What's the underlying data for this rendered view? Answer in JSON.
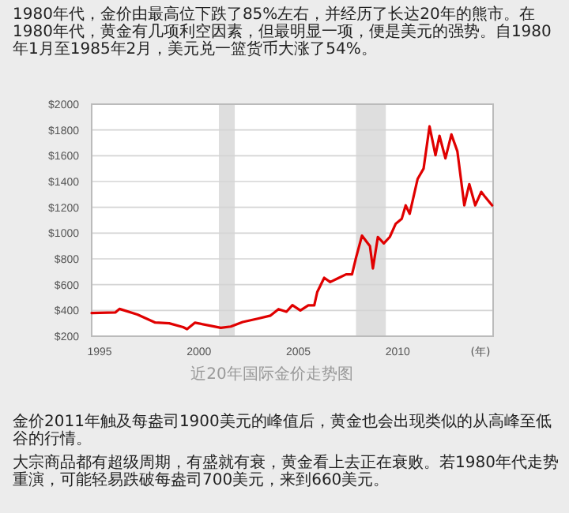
{
  "chart_data": {
    "type": "line",
    "xlabel": "(年)",
    "annotations": [
      "1980年代，金价由最高位下跌了85%左右，并经历了长达20年的熊市。在1980年代，黄金有几项利空因素，但最明显一项，便是美元的强势。自1980年1月至1985年2月，美元兑一篮货币大涨了54%。",
      "近20年国际金价走势图",
      "金价2011年触及每盎司1900美元的峰值后，黄金也会出现类似的从高峰至低谷的行情。",
      "大宗商品都有超级周期，有盛就有衰，黄金看上去正在衰败。若1980年代走势重演，可能轻易跌破每盎司700美元，来到660美元。"
    ],
    "xlim": [
      1994.6,
      2014.8
    ],
    "xticks": [
      1995,
      2000,
      2005,
      2010
    ],
    "ylim": [
      200,
      2000
    ],
    "yticks": [
      {
        "value": 200,
        "label": "$200"
      },
      {
        "value": 400,
        "label": "$400"
      },
      {
        "value": 600,
        "label": "$600"
      },
      {
        "value": 800,
        "label": "$800"
      },
      {
        "value": 1000,
        "label": "$1000"
      },
      {
        "value": 1200,
        "label": "$1200"
      },
      {
        "value": 1400,
        "label": "$1400"
      },
      {
        "value": 1600,
        "label": "$1600"
      },
      {
        "value": 1800,
        "label": "$1800"
      },
      {
        "value": 2000,
        "label": "$2000"
      }
    ],
    "grid": "y",
    "bands": [
      {
        "axis": "x",
        "from": 2001.0,
        "to": 2001.8,
        "color": "#dedede"
      },
      {
        "axis": "x",
        "from": 2007.9,
        "to": 2009.4,
        "color": "#dedede"
      }
    ],
    "series": [
      {
        "color": "#e00000",
        "x": [
          1994.6,
          1995.8,
          1996.0,
          1996.9,
          1997.8,
          1998.5,
          1999.2,
          1999.4,
          1999.8,
          2000.6,
          2001.1,
          2001.6,
          2002.2,
          2003.0,
          2003.6,
          2004.0,
          2004.4,
          2004.7,
          2005.1,
          2005.5,
          2005.8,
          2005.95,
          2006.3,
          2006.6,
          2007.0,
          2007.4,
          2007.7,
          2007.9,
          2008.2,
          2008.5,
          2008.6,
          2008.75,
          2009.0,
          2009.3,
          2009.6,
          2009.9,
          2010.2,
          2010.4,
          2010.6,
          2011.0,
          2011.3,
          2011.6,
          2011.9,
          2012.1,
          2012.4,
          2012.7,
          2013.0,
          2013.35,
          2013.6,
          2013.9,
          2014.2,
          2014.4,
          2014.75
        ],
        "values": [
          380,
          385,
          412,
          368,
          306,
          300,
          270,
          255,
          305,
          280,
          265,
          275,
          310,
          338,
          360,
          410,
          390,
          441,
          400,
          440,
          440,
          543,
          653,
          620,
          650,
          680,
          680,
          808,
          980,
          920,
          900,
          726,
          970,
          920,
          970,
          1073,
          1110,
          1215,
          1150,
          1420,
          1500,
          1828,
          1604,
          1755,
          1580,
          1765,
          1635,
          1215,
          1380,
          1215,
          1320,
          1280,
          1215
        ]
      }
    ]
  }
}
